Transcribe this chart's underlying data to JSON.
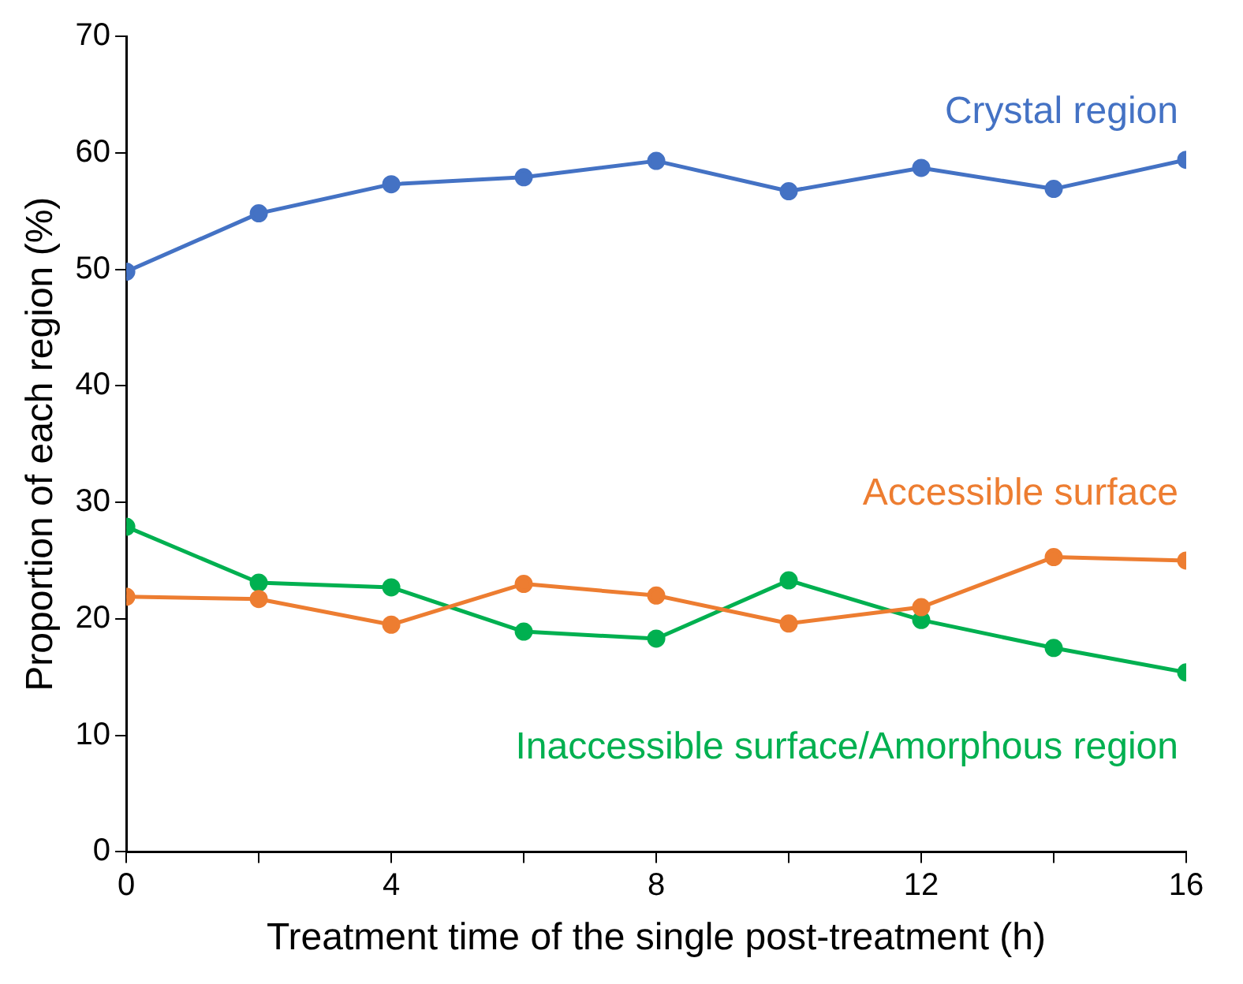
{
  "chart_data": {
    "type": "line",
    "xlabel": "Treatment time of the single post-treatment (h)",
    "ylabel": "Proportion of each region (%)",
    "x": [
      0,
      2,
      4,
      6,
      8,
      10,
      12,
      14,
      16
    ],
    "series": [
      {
        "name": "Crystal region",
        "color": "#4472c4",
        "values": [
          49.8,
          54.8,
          57.3,
          57.9,
          59.3,
          56.7,
          58.7,
          56.9,
          59.4
        ]
      },
      {
        "name": "Accessible surface",
        "color": "#ed7d31",
        "values": [
          21.9,
          21.7,
          19.5,
          23.0,
          22.0,
          19.6,
          21.0,
          25.3,
          25.0
        ]
      },
      {
        "name": "Inaccessible surface/Amorphous region",
        "color": "#00b050",
        "values": [
          27.9,
          23.1,
          22.7,
          18.9,
          18.3,
          23.3,
          19.9,
          17.5,
          15.4
        ]
      }
    ],
    "xlim": [
      0,
      16
    ],
    "xticks": [
      0,
      {
        "value": 2,
        "label": null
      },
      4,
      {
        "value": 6,
        "label": null
      },
      8,
      {
        "value": 10,
        "label": null
      },
      12,
      {
        "value": 14,
        "label": null
      },
      16
    ],
    "ylim": [
      0,
      70
    ],
    "yticks": [
      0,
      10,
      20,
      30,
      40,
      50,
      60,
      70
    ],
    "grid": false,
    "legend": false,
    "marker": "circle",
    "line_style": "solid"
  }
}
